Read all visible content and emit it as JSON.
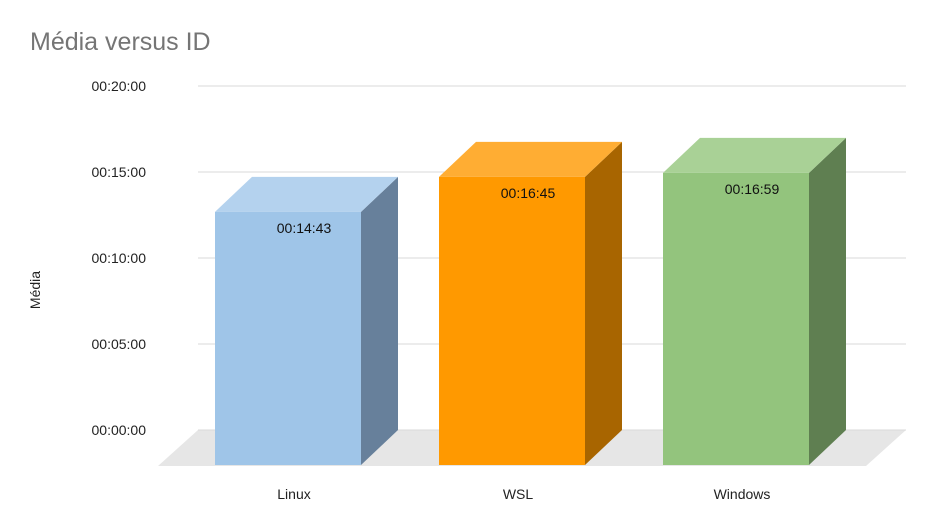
{
  "chart_data": {
    "type": "bar",
    "title": "Média versus ID",
    "ylabel": "Média",
    "xlabel": "",
    "categories": [
      "Linux",
      "WSL",
      "Windows"
    ],
    "values_seconds": [
      883,
      1005,
      1019
    ],
    "data_labels": [
      "00:14:43",
      "00:16:45",
      "00:16:59"
    ],
    "ylim_seconds": [
      0,
      1200
    ],
    "y_ticks_seconds": [
      0,
      300,
      600,
      900,
      1200
    ],
    "y_tick_labels": [
      "00:00:00",
      "00:05:00",
      "00:10:00",
      "00:15:00",
      "00:20:00"
    ],
    "grid": true,
    "legend": "none",
    "style": "3d-column",
    "colors": {
      "Linux": {
        "front": "#9fc5e8",
        "top": "#b4d2ee",
        "side": "#67809b"
      },
      "WSL": {
        "front": "#ff9900",
        "top": "#ffad33",
        "side": "#a86500"
      },
      "Windows": {
        "front": "#93c47d",
        "top": "#a9d196",
        "side": "#5f7f51"
      }
    }
  }
}
